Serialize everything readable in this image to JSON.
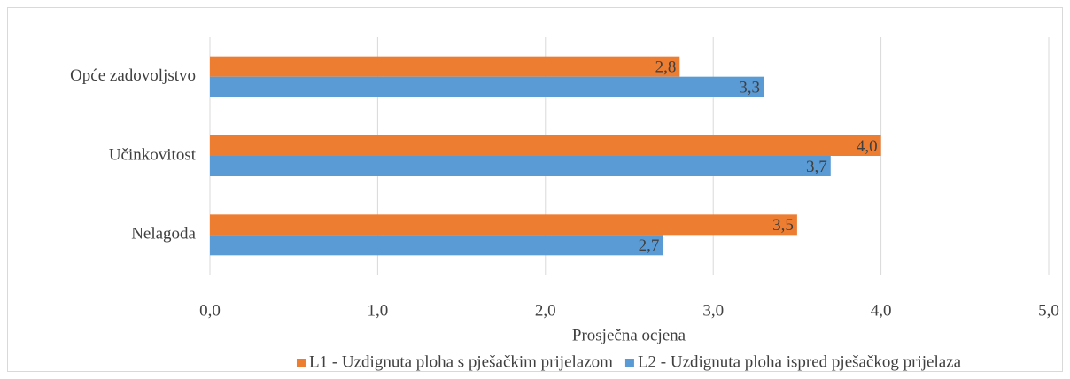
{
  "chart_data": {
    "type": "hbar",
    "categories": [
      "Opće zadovoljstvo",
      "Učinkovitost",
      "Nelagoda"
    ],
    "series": [
      {
        "name": "L1 - Uzdignuta ploha s pješačkim prijelazom",
        "color": "#ed7d31",
        "values": [
          2.8,
          4.0,
          3.5
        ],
        "value_labels": [
          "2,8",
          "4,0",
          "3,5"
        ]
      },
      {
        "name": "L2 - Uzdignuta ploha ispred pješačkog prijelaza",
        "color": "#5b9bd5",
        "values": [
          3.3,
          3.7,
          2.7
        ],
        "value_labels": [
          "3,3",
          "3,7",
          "2,7"
        ]
      }
    ],
    "xlabel": "Prosječna ocjena",
    "xlim": [
      0,
      5
    ],
    "xticks": [
      {
        "value": 0,
        "label": "0,0"
      },
      {
        "value": 1,
        "label": "1,0"
      },
      {
        "value": 2,
        "label": "2,0"
      },
      {
        "value": 3,
        "label": "3,0"
      },
      {
        "value": 4,
        "label": "4,0"
      },
      {
        "value": 5,
        "label": "5,0"
      }
    ],
    "grid": true,
    "legend": "bottom"
  }
}
